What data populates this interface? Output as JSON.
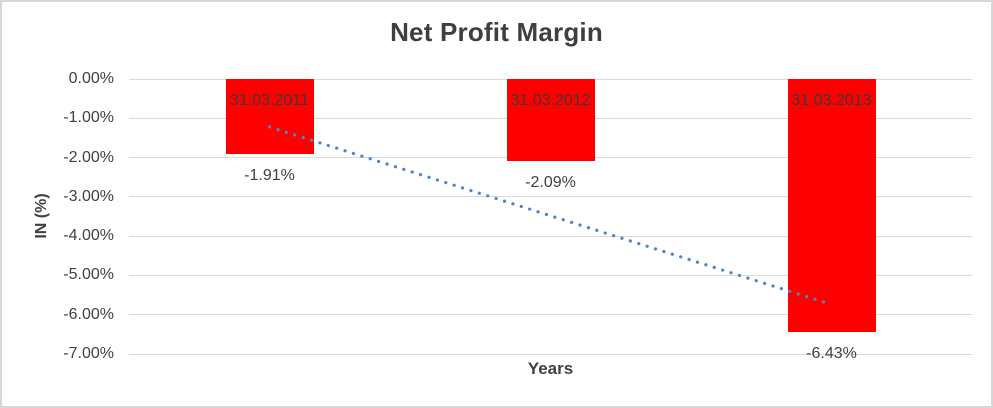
{
  "chart_data": {
    "type": "bar",
    "title": "Net Profit Margin",
    "xlabel": "Years",
    "ylabel": "IN (%)",
    "categories": [
      "31.03.2011",
      "31.03.2012",
      "31.03.2013"
    ],
    "values": [
      -1.91,
      -2.09,
      -6.43
    ],
    "data_labels": [
      "-1.91%",
      "-2.09%",
      "-6.43%"
    ],
    "ylim": [
      -7,
      0
    ],
    "grid": true,
    "legend": "none",
    "bar_color": "#FF0000",
    "yticks": [
      {
        "value": 0,
        "label": "0.00%"
      },
      {
        "value": -1,
        "label": "-1.00%"
      },
      {
        "value": -2,
        "label": "-2.00%"
      },
      {
        "value": -3,
        "label": "-3.00%"
      },
      {
        "value": -4,
        "label": "-4.00%"
      },
      {
        "value": -5,
        "label": "-5.00%"
      },
      {
        "value": -6,
        "label": "-6.00%"
      },
      {
        "value": -7,
        "label": "-7.00%"
      }
    ],
    "trendline": {
      "type": "linear",
      "style": "dotted",
      "color": "#4A86C8",
      "start_value": -1.22,
      "end_value": -5.74
    }
  }
}
